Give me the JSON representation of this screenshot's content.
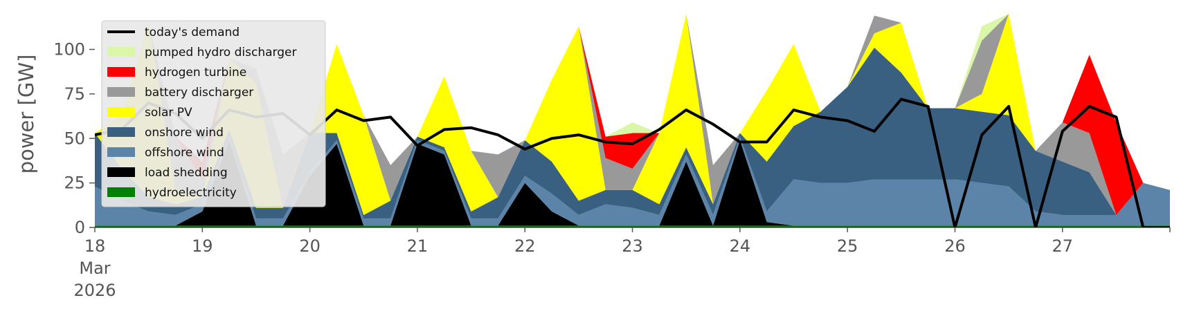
{
  "chart_data": {
    "type": "area",
    "title": "",
    "xlabel": "",
    "ylabel": "power [GW]",
    "ylim": [
      0,
      120
    ],
    "yticks": [
      0,
      25,
      50,
      75,
      100
    ],
    "grid": false,
    "legend_placement": "top-left",
    "x_start": "2026-03-18 00:00",
    "x_end": "2026-03-27 23:59",
    "x_tick_labels": [
      {
        "day": "18",
        "month": "Mar",
        "year": "2026"
      },
      {
        "day": "19"
      },
      {
        "day": "20"
      },
      {
        "day": "21"
      },
      {
        "day": "22"
      },
      {
        "day": "23"
      },
      {
        "day": "24"
      },
      {
        "day": "25"
      },
      {
        "day": "26"
      },
      {
        "day": "27"
      }
    ],
    "x": [
      "2026-03-18 00:00",
      "2026-03-18 06:00",
      "2026-03-18 12:00",
      "2026-03-18 18:00",
      "2026-03-19 00:00",
      "2026-03-19 06:00",
      "2026-03-19 12:00",
      "2026-03-19 18:00",
      "2026-03-20 00:00",
      "2026-03-20 06:00",
      "2026-03-20 12:00",
      "2026-03-20 18:00",
      "2026-03-21 00:00",
      "2026-03-21 06:00",
      "2026-03-21 12:00",
      "2026-03-21 18:00",
      "2026-03-22 00:00",
      "2026-03-22 06:00",
      "2026-03-22 12:00",
      "2026-03-22 18:00",
      "2026-03-23 00:00",
      "2026-03-23 06:00",
      "2026-03-23 12:00",
      "2026-03-23 18:00",
      "2026-03-24 00:00",
      "2026-03-24 06:00",
      "2026-03-24 12:00",
      "2026-03-24 18:00",
      "2026-03-25 00:00",
      "2026-03-25 06:00",
      "2026-03-25 12:00",
      "2026-03-25 18:00",
      "2026-03-26 00:00",
      "2026-03-26 06:00",
      "2026-03-26 12:00",
      "2026-03-26 18:00",
      "2026-03-27 00:00",
      "2026-03-27 06:00",
      "2026-03-27 12:00",
      "2026-03-27 18:00",
      "2026-03-28 00:00"
    ],
    "series": [
      {
        "name": "hydroelectricity",
        "kind": "area",
        "color": "#008000",
        "values": [
          1,
          1,
          1,
          1,
          1,
          1,
          1,
          1,
          1,
          1,
          1,
          1,
          1,
          1,
          1,
          1,
          1,
          1,
          1,
          1,
          1,
          1,
          1,
          1,
          1,
          1,
          1,
          1,
          1,
          1,
          1,
          1,
          1,
          1,
          1,
          1,
          1,
          1,
          1,
          1,
          1
        ]
      },
      {
        "name": "load shedding",
        "kind": "area",
        "color": "#000000",
        "values": [
          0,
          0,
          0,
          0,
          8,
          48,
          0,
          0,
          28,
          46,
          0,
          0,
          46,
          40,
          0,
          0,
          24,
          8,
          0,
          0,
          0,
          0,
          36,
          0,
          48,
          2,
          0,
          0,
          0,
          0,
          0,
          0,
          0,
          0,
          0,
          0,
          0,
          0,
          0,
          0,
          0
        ]
      },
      {
        "name": "offshore wind",
        "kind": "area",
        "color": "#5b84a8",
        "values": [
          22,
          14,
          8,
          6,
          4,
          2,
          4,
          4,
          2,
          2,
          4,
          4,
          2,
          2,
          4,
          4,
          4,
          10,
          6,
          12,
          10,
          6,
          4,
          6,
          2,
          6,
          26,
          24,
          24,
          26,
          26,
          26,
          26,
          24,
          22,
          8,
          6,
          6,
          6,
          24,
          20
        ]
      },
      {
        "name": "onshore wind",
        "kind": "area",
        "color": "#3a6081",
        "values": [
          30,
          18,
          8,
          6,
          4,
          4,
          6,
          6,
          22,
          4,
          2,
          10,
          2,
          2,
          4,
          12,
          20,
          18,
          8,
          8,
          10,
          6,
          4,
          6,
          2,
          28,
          30,
          40,
          54,
          74,
          60,
          40,
          40,
          40,
          40,
          34,
          30,
          24,
          0,
          0,
          0
        ]
      },
      {
        "name": "solar PV",
        "kind": "area",
        "color": "#ffff00",
        "values": [
          0,
          30,
          98,
          8,
          0,
          40,
          70,
          0,
          0,
          50,
          56,
          0,
          0,
          40,
          34,
          0,
          0,
          46,
          98,
          0,
          0,
          40,
          76,
          0,
          0,
          40,
          46,
          0,
          0,
          8,
          28,
          0,
          0,
          10,
          58,
          0,
          0,
          0,
          0,
          0,
          0
        ]
      },
      {
        "name": "battery discharger",
        "kind": "area",
        "color": "#999999",
        "values": [
          0,
          0,
          0,
          30,
          10,
          0,
          8,
          30,
          0,
          0,
          0,
          20,
          0,
          0,
          0,
          24,
          0,
          0,
          0,
          18,
          12,
          0,
          0,
          22,
          0,
          0,
          0,
          0,
          0,
          10,
          0,
          0,
          0,
          30,
          0,
          0,
          22,
          22,
          0,
          0,
          0
        ]
      },
      {
        "name": "hydrogen turbine",
        "kind": "area",
        "color": "#ff0000",
        "values": [
          0,
          0,
          0,
          0,
          10,
          0,
          0,
          0,
          0,
          0,
          0,
          0,
          0,
          0,
          0,
          0,
          0,
          0,
          0,
          12,
          20,
          0,
          0,
          0,
          0,
          0,
          0,
          0,
          0,
          0,
          0,
          0,
          0,
          0,
          0,
          0,
          0,
          44,
          52,
          0,
          0
        ]
      },
      {
        "name": "pumped hydro discharger",
        "kind": "area",
        "color": "#d9f7a6",
        "values": [
          0,
          0,
          0,
          0,
          0,
          0,
          0,
          0,
          0,
          0,
          0,
          0,
          0,
          0,
          0,
          0,
          0,
          0,
          0,
          0,
          6,
          0,
          0,
          0,
          0,
          0,
          0,
          0,
          0,
          0,
          0,
          0,
          0,
          8,
          0,
          0,
          0,
          0,
          0,
          0,
          0
        ]
      },
      {
        "name": "today's demand",
        "kind": "line",
        "color": "#000000",
        "values": [
          52,
          55,
          70,
          64,
          50,
          66,
          62,
          64,
          52,
          66,
          60,
          62,
          46,
          55,
          56,
          52,
          44,
          50,
          52,
          48,
          47,
          55,
          66,
          58,
          48,
          48,
          66,
          62,
          60,
          54,
          72,
          68,
          0,
          52,
          68,
          0,
          54,
          68,
          62,
          0,
          0
        ]
      }
    ],
    "legend_order": [
      "today's demand",
      "pumped hydro discharger",
      "hydrogen turbine",
      "battery discharger",
      "solar PV",
      "onshore wind",
      "offshore wind",
      "load shedding",
      "hydroelectricity"
    ]
  }
}
